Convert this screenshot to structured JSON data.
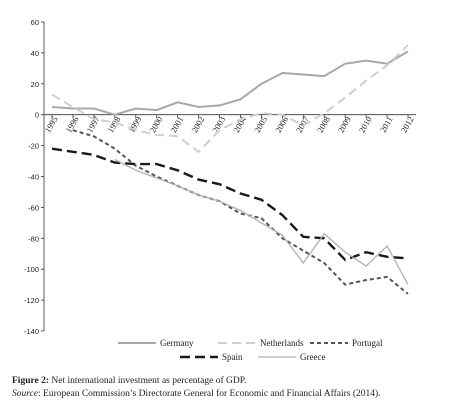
{
  "chart_data": {
    "type": "line",
    "categories": [
      "1995",
      "1996",
      "1997",
      "1998",
      "1999",
      "2000",
      "2001",
      "2002",
      "2003",
      "2004",
      "2005",
      "2006",
      "2007",
      "2008",
      "2009",
      "2010",
      "2011",
      "2012"
    ],
    "series": [
      {
        "name": "Germany",
        "color": "#a8a8a8",
        "dash": "",
        "values": [
          5,
          4,
          4,
          0,
          4,
          3,
          8,
          5,
          6,
          10,
          20,
          27,
          26,
          25,
          33,
          35,
          33,
          41
        ]
      },
      {
        "name": "Netherlands",
        "color": "#cfcfcf",
        "dash": "9 5",
        "values": [
          13,
          5,
          -3,
          -5,
          -10,
          -13,
          -14,
          -24,
          -10,
          -3,
          1,
          0,
          -7,
          1,
          11,
          22,
          32,
          45
        ]
      },
      {
        "name": "Portugal",
        "color": "#555555",
        "dash": "4 3",
        "values": [
          null,
          -10,
          -14,
          -22,
          -33,
          -40,
          -46,
          -52,
          -56,
          -64,
          -67,
          -80,
          -88,
          -96,
          -110,
          -107,
          -105,
          -116
        ]
      },
      {
        "name": "Spain",
        "color": "#1a1a1a",
        "dash": "10 5",
        "values": [
          -22,
          -24,
          -26,
          -31,
          -32,
          -32,
          -36,
          -42,
          -45,
          -51,
          -55,
          -65,
          -79,
          -80,
          -94,
          -89,
          -92,
          -93
        ]
      },
      {
        "name": "Greece",
        "color": "#b0b0b0",
        "dash": "",
        "values": [
          null,
          null,
          null,
          -29,
          -36,
          -41,
          -46,
          -52,
          -56,
          -62,
          -70,
          -78,
          -96,
          -77,
          -89,
          -98,
          -85,
          -110
        ]
      }
    ],
    "ylim": [
      -140,
      60
    ],
    "yticks": [
      -140,
      -120,
      -100,
      -80,
      -60,
      -40,
      -20,
      0,
      20,
      40,
      60
    ]
  },
  "caption": {
    "label": "Figure 2:",
    "text": " Net international investment as percentage of GDP."
  },
  "source": {
    "label": "Source",
    "text": ": European Commission’s Directorate General for Economic and Financial Affairs (2014)."
  }
}
